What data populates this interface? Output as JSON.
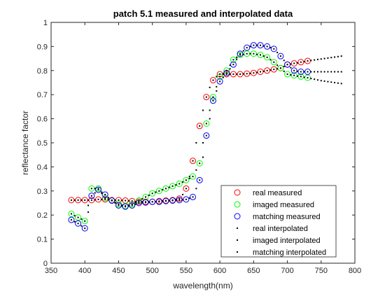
{
  "chart_data": {
    "type": "scatter",
    "title": "patch 5.1 measured and interpolated data",
    "xlabel": "wavelength(nm)",
    "ylabel": "reflectance factor",
    "xlim": [
      350,
      800
    ],
    "ylim": [
      0,
      1
    ],
    "xticks": [
      "350",
      "400",
      "450",
      "500",
      "550",
      "600",
      "650",
      "700",
      "750",
      "800"
    ],
    "yticks": [
      "0",
      "0.1",
      "0.2",
      "0.3",
      "0.4",
      "0.5",
      "0.6",
      "0.7",
      "0.8",
      "0.9",
      "1"
    ],
    "grid": false,
    "legend_position": "bottom-right",
    "colors": {
      "real": "#ff0000",
      "imaged": "#00ff00",
      "matching": "#0000ff",
      "interp": "#000000"
    },
    "series": [
      {
        "name": "real measured",
        "marker": "circle",
        "color": "#ff0000",
        "x": [
          380,
          390,
          400,
          410,
          420,
          430,
          440,
          450,
          460,
          470,
          480,
          490,
          500,
          510,
          520,
          530,
          540,
          550,
          560,
          570,
          580,
          590,
          600,
          610,
          620,
          630,
          640,
          650,
          660,
          670,
          680,
          690,
          700,
          710,
          720,
          730
        ],
        "y": [
          0.262,
          0.262,
          0.262,
          0.262,
          0.265,
          0.265,
          0.262,
          0.262,
          0.26,
          0.258,
          0.255,
          0.255,
          0.255,
          0.258,
          0.26,
          0.262,
          0.268,
          0.31,
          0.425,
          0.57,
          0.69,
          0.76,
          0.785,
          0.785,
          0.785,
          0.785,
          0.787,
          0.79,
          0.795,
          0.8,
          0.805,
          0.81,
          0.825,
          0.83,
          0.835,
          0.84
        ]
      },
      {
        "name": "imaged measured",
        "marker": "circle",
        "color": "#00ff00",
        "x": [
          380,
          390,
          400,
          410,
          420,
          430,
          440,
          450,
          460,
          470,
          480,
          490,
          500,
          510,
          520,
          530,
          540,
          550,
          560,
          570,
          580,
          590,
          600,
          610,
          620,
          630,
          640,
          650,
          660,
          670,
          680,
          690,
          700,
          710,
          720,
          730
        ],
        "y": [
          0.205,
          0.19,
          0.175,
          0.31,
          0.31,
          0.27,
          0.26,
          0.245,
          0.238,
          0.245,
          0.26,
          0.275,
          0.29,
          0.3,
          0.31,
          0.32,
          0.33,
          0.345,
          0.36,
          0.415,
          0.58,
          0.69,
          0.775,
          0.8,
          0.845,
          0.865,
          0.87,
          0.87,
          0.865,
          0.855,
          0.835,
          0.81,
          0.785,
          0.78,
          0.775,
          0.77
        ]
      },
      {
        "name": "matching measured",
        "marker": "circle",
        "color": "#0000ff",
        "x": [
          380,
          390,
          400,
          410,
          420,
          430,
          440,
          450,
          460,
          470,
          480,
          490,
          500,
          510,
          520,
          530,
          540,
          550,
          560,
          570,
          580,
          590,
          600,
          610,
          620,
          630,
          640,
          650,
          660,
          670,
          680,
          690,
          700,
          710,
          720,
          730
        ],
        "y": [
          0.18,
          0.165,
          0.145,
          0.28,
          0.305,
          0.285,
          0.26,
          0.24,
          0.235,
          0.24,
          0.25,
          0.252,
          0.255,
          0.255,
          0.258,
          0.26,
          0.262,
          0.265,
          0.275,
          0.345,
          0.53,
          0.675,
          0.755,
          0.79,
          0.825,
          0.87,
          0.895,
          0.905,
          0.905,
          0.9,
          0.89,
          0.86,
          0.825,
          0.8,
          0.795,
          0.795
        ]
      },
      {
        "name": "real interpolated",
        "marker": "dot",
        "color": "#000000",
        "x": [
          380,
          385,
          390,
          395,
          400,
          405,
          410,
          415,
          420,
          425,
          430,
          435,
          440,
          445,
          450,
          455,
          460,
          465,
          470,
          475,
          480,
          485,
          490,
          495,
          500,
          505,
          510,
          515,
          520,
          525,
          530,
          535,
          540,
          545,
          550,
          555,
          560,
          565,
          570,
          575,
          580,
          585,
          590,
          595,
          600,
          605,
          610,
          615,
          620,
          625,
          630,
          635,
          640,
          645,
          650,
          655,
          660,
          665,
          670,
          675,
          680,
          685,
          690,
          695,
          700,
          705,
          710,
          715,
          720,
          725,
          730,
          735,
          740,
          745,
          750,
          755,
          760,
          765,
          770,
          775,
          780
        ],
        "y": [
          0.262,
          0.262,
          0.262,
          0.262,
          0.262,
          0.262,
          0.262,
          0.263,
          0.265,
          0.265,
          0.265,
          0.263,
          0.262,
          0.262,
          0.262,
          0.261,
          0.26,
          0.259,
          0.258,
          0.256,
          0.255,
          0.255,
          0.255,
          0.255,
          0.255,
          0.256,
          0.258,
          0.259,
          0.26,
          0.261,
          0.262,
          0.265,
          0.268,
          0.285,
          0.31,
          0.36,
          0.425,
          0.5,
          0.57,
          0.635,
          0.69,
          0.73,
          0.76,
          0.775,
          0.785,
          0.785,
          0.785,
          0.785,
          0.785,
          0.785,
          0.785,
          0.786,
          0.787,
          0.788,
          0.79,
          0.792,
          0.795,
          0.797,
          0.8,
          0.802,
          0.805,
          0.807,
          0.81,
          0.817,
          0.825,
          0.827,
          0.83,
          0.832,
          0.835,
          0.837,
          0.84,
          0.842,
          0.844,
          0.846,
          0.848,
          0.85,
          0.852,
          0.854,
          0.856,
          0.858,
          0.86
        ]
      },
      {
        "name": "imaged interpolated",
        "marker": "dot",
        "color": "#000000",
        "x": [
          380,
          385,
          390,
          395,
          400,
          405,
          410,
          415,
          420,
          425,
          430,
          435,
          440,
          445,
          450,
          455,
          460,
          465,
          470,
          475,
          480,
          485,
          490,
          495,
          500,
          505,
          510,
          515,
          520,
          525,
          530,
          535,
          540,
          545,
          550,
          555,
          560,
          565,
          570,
          575,
          580,
          585,
          590,
          595,
          600,
          605,
          610,
          615,
          620,
          625,
          630,
          635,
          640,
          645,
          650,
          655,
          660,
          665,
          670,
          675,
          680,
          685,
          690,
          695,
          700,
          705,
          710,
          715,
          720,
          725,
          730,
          735,
          740,
          745,
          750,
          755,
          760,
          765,
          770,
          775,
          780
        ],
        "y": [
          0.205,
          0.197,
          0.19,
          0.183,
          0.175,
          0.24,
          0.31,
          0.31,
          0.31,
          0.29,
          0.27,
          0.265,
          0.26,
          0.252,
          0.245,
          0.241,
          0.238,
          0.241,
          0.245,
          0.252,
          0.26,
          0.267,
          0.275,
          0.282,
          0.29,
          0.295,
          0.3,
          0.305,
          0.31,
          0.315,
          0.32,
          0.325,
          0.33,
          0.337,
          0.345,
          0.352,
          0.36,
          0.387,
          0.415,
          0.5,
          0.58,
          0.635,
          0.69,
          0.733,
          0.775,
          0.787,
          0.8,
          0.822,
          0.845,
          0.855,
          0.865,
          0.867,
          0.87,
          0.87,
          0.87,
          0.867,
          0.865,
          0.86,
          0.855,
          0.845,
          0.835,
          0.822,
          0.81,
          0.797,
          0.785,
          0.782,
          0.78,
          0.777,
          0.775,
          0.772,
          0.77,
          0.767,
          0.764,
          0.761,
          0.758,
          0.756,
          0.754,
          0.752,
          0.75,
          0.748,
          0.746
        ]
      },
      {
        "name": "matching interpolated",
        "marker": "dot",
        "color": "#000000",
        "x": [
          380,
          385,
          390,
          395,
          400,
          405,
          410,
          415,
          420,
          425,
          430,
          435,
          440,
          445,
          450,
          455,
          460,
          465,
          470,
          475,
          480,
          485,
          490,
          495,
          500,
          505,
          510,
          515,
          520,
          525,
          530,
          535,
          540,
          545,
          550,
          555,
          560,
          565,
          570,
          575,
          580,
          585,
          590,
          595,
          600,
          605,
          610,
          615,
          620,
          625,
          630,
          635,
          640,
          645,
          650,
          655,
          660,
          665,
          670,
          675,
          680,
          685,
          690,
          695,
          700,
          705,
          710,
          715,
          720,
          725,
          730,
          735,
          740,
          745,
          750,
          755,
          760,
          765,
          770,
          775,
          780
        ],
        "y": [
          0.18,
          0.172,
          0.165,
          0.155,
          0.145,
          0.212,
          0.28,
          0.292,
          0.305,
          0.295,
          0.285,
          0.272,
          0.26,
          0.25,
          0.24,
          0.237,
          0.235,
          0.237,
          0.24,
          0.245,
          0.25,
          0.251,
          0.252,
          0.253,
          0.255,
          0.255,
          0.255,
          0.256,
          0.258,
          0.259,
          0.26,
          0.261,
          0.262,
          0.263,
          0.265,
          0.27,
          0.275,
          0.31,
          0.345,
          0.44,
          0.53,
          0.6,
          0.675,
          0.715,
          0.755,
          0.772,
          0.79,
          0.807,
          0.825,
          0.847,
          0.87,
          0.882,
          0.895,
          0.9,
          0.905,
          0.905,
          0.905,
          0.902,
          0.9,
          0.895,
          0.89,
          0.875,
          0.86,
          0.842,
          0.825,
          0.812,
          0.8,
          0.797,
          0.795,
          0.795,
          0.795,
          0.795,
          0.795,
          0.795,
          0.795,
          0.795,
          0.795,
          0.795,
          0.795,
          0.795,
          0.795
        ]
      }
    ]
  }
}
